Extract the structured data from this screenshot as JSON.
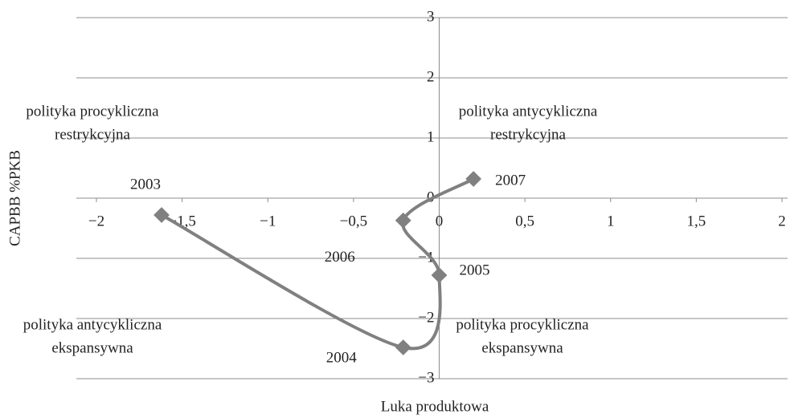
{
  "chart_data": {
    "type": "scatter",
    "xlabel": "Luka produktowa",
    "ylabel": "CAPBB %PKB",
    "x": [
      -1.62,
      -0.21,
      0,
      -0.21,
      0.2
    ],
    "series": [
      {
        "color": "#808080",
        "values": [
          -0.28,
          -2.48,
          -1.28,
          -0.37,
          0.32
        ]
      }
    ],
    "point_labels": [
      "2003",
      "2004",
      "2005",
      "2006",
      "2007"
    ],
    "xlim": [
      -2,
      2
    ],
    "xticks": [
      {
        "value": -2,
        "label": "−2"
      },
      {
        "value": -1.5,
        "label": "−1,5"
      },
      {
        "value": -1,
        "label": "−1"
      },
      {
        "value": -0.5,
        "label": "−0,5"
      },
      0,
      {
        "value": 0.5,
        "label": "0,5"
      },
      1,
      {
        "value": 1.5,
        "label": "1,5"
      },
      2
    ],
    "ylim": [
      -3,
      3
    ],
    "yticks": [
      {
        "value": -3,
        "label": "−3"
      },
      {
        "value": -2,
        "label": "−2"
      },
      {
        "value": -1,
        "label": "−1"
      },
      0,
      1,
      2,
      3
    ],
    "grid": true,
    "annotations": [
      {
        "lines": [
          "polityka procykliczna",
          "restrykcyjna"
        ]
      },
      {
        "lines": [
          "polityka antycykliczna",
          "restrykcyjna"
        ]
      },
      {
        "lines": [
          "polityka antycykliczna",
          "ekspansywna"
        ]
      },
      {
        "lines": [
          "polityka procykliczna",
          "ekspansywna"
        ]
      }
    ]
  }
}
